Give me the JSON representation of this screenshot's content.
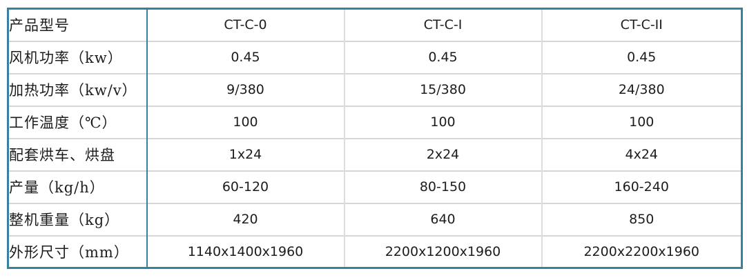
{
  "colors": {
    "accent_border": "#38809f",
    "grid_line": "#d6d6d8",
    "text": "#1c1c1c",
    "background": "#ffffff"
  },
  "table": {
    "rows": [
      {
        "label": "产品型号",
        "values": [
          "CT-C-0",
          "CT-C-I",
          "CT-C-II"
        ]
      },
      {
        "label": "风机功率（kw）",
        "values": [
          "0.45",
          "0.45",
          "0.45"
        ]
      },
      {
        "label": "加热功率（kw/v）",
        "values": [
          "9/380",
          "15/380",
          "24/380"
        ]
      },
      {
        "label": "工作温度（℃）",
        "values": [
          "100",
          "100",
          "100"
        ]
      },
      {
        "label": "配套烘车、烘盘",
        "values": [
          "1x24",
          "2x24",
          "4x24"
        ]
      },
      {
        "label": "产量（kg/h）",
        "values": [
          "60-120",
          "80-150",
          "160-240"
        ]
      },
      {
        "label": "整机重量（kg）",
        "values": [
          "420",
          "640",
          "850"
        ]
      },
      {
        "label": "外形尺寸（mm）",
        "values": [
          "1140x1400x1960",
          "2200x1200x1960",
          "2200x2200x1960"
        ]
      }
    ]
  }
}
